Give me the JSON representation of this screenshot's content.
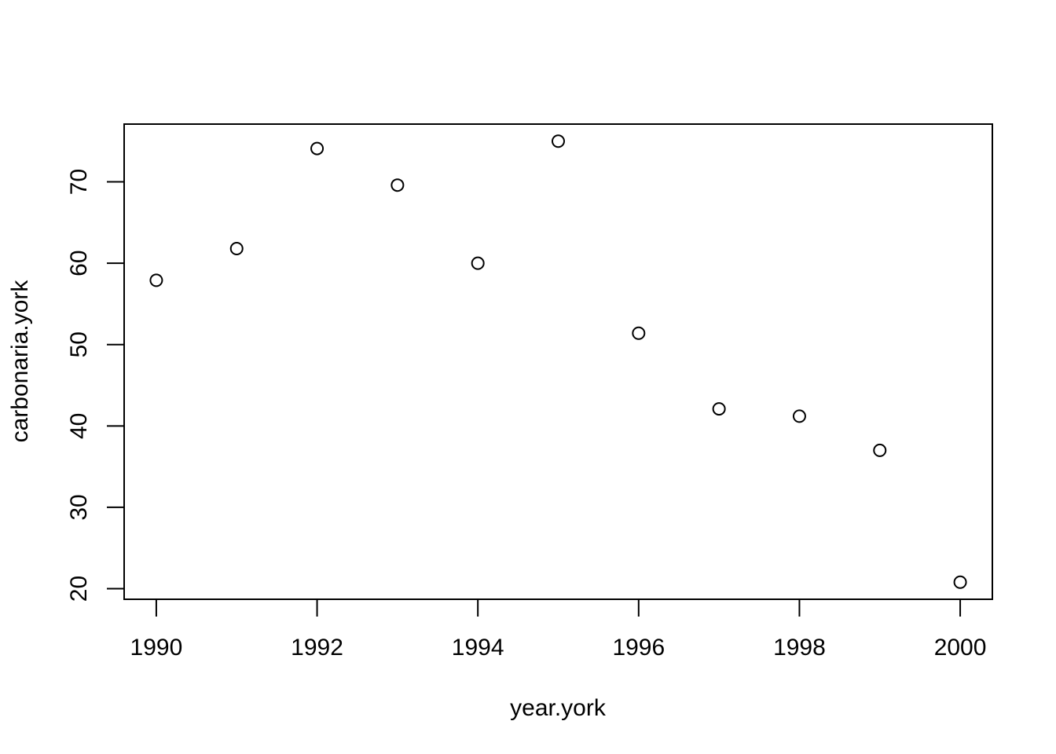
{
  "chart_data": {
    "type": "scatter",
    "xlabel": "year.york",
    "ylabel": "carbonaria.york",
    "x": [
      1990,
      1991,
      1992,
      1993,
      1994,
      1995,
      1996,
      1997,
      1998,
      1999,
      2000
    ],
    "y": [
      57.9,
      61.8,
      74.1,
      69.6,
      60.0,
      75.0,
      51.4,
      42.1,
      41.2,
      37.0,
      20.8
    ],
    "xlim": [
      1989.6,
      2000.4
    ],
    "ylim": [
      18.7,
      77.1
    ],
    "xticks": [
      1990,
      1992,
      1994,
      1996,
      1998,
      2000
    ],
    "yticks": [
      20,
      30,
      40,
      50,
      60,
      70
    ],
    "xtick_labels": [
      "1990",
      "1992",
      "1994",
      "1996",
      "1998",
      "2000"
    ],
    "ytick_labels": [
      "20",
      "30",
      "40",
      "50",
      "60",
      "70"
    ],
    "marker": "open-circle",
    "grid": false,
    "colors": {
      "point": "#000000",
      "axis": "#000000",
      "background": "#ffffff"
    }
  }
}
